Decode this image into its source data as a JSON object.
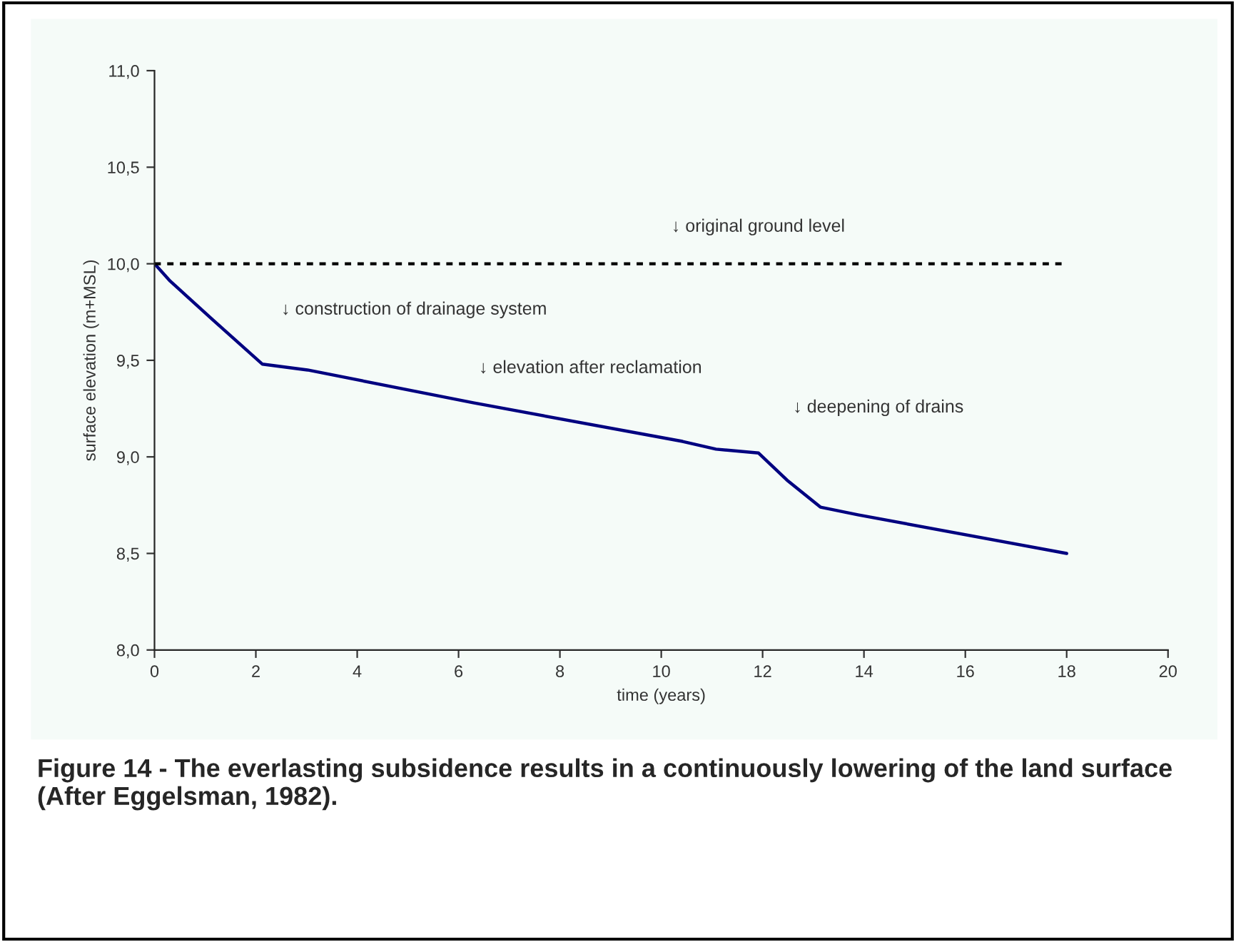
{
  "chart_data": {
    "type": "line",
    "xlabel": "time (years)",
    "ylabel": "surface elevation (m+MSL)",
    "xlim": [
      0,
      20
    ],
    "xticks": [
      0,
      2,
      4,
      6,
      8,
      10,
      12,
      14,
      16,
      18,
      20
    ],
    "ylim": [
      8.0,
      11.0
    ],
    "yticks": [
      {
        "value": 8.0,
        "label": "8,0"
      },
      {
        "value": 8.5,
        "label": "8,5"
      },
      {
        "value": 9.0,
        "label": "9,0"
      },
      {
        "value": 9.5,
        "label": "9,5"
      },
      {
        "value": 10.0,
        "label": "10,0"
      },
      {
        "value": 10.5,
        "label": "10,5"
      },
      {
        "value": 11.0,
        "label": "11,0"
      }
    ],
    "grid": false,
    "legend": false,
    "series": [
      {
        "color": "#000080",
        "line_style": "solid",
        "x": [
          0,
          0.31,
          1.15,
          2.13,
          3.02,
          6.29,
          10.42,
          11.08,
          11.92,
          12.48,
          13.14,
          13.88,
          18.0
        ],
        "values": [
          10.0,
          9.91,
          9.71,
          9.48,
          9.45,
          9.28,
          9.08,
          9.04,
          9.02,
          8.88,
          8.74,
          8.7,
          8.5
        ]
      },
      {
        "color": "#000000",
        "line_style": "dashed",
        "x": [
          0,
          18
        ],
        "values": [
          10.0,
          10.0
        ]
      }
    ],
    "annotations": [
      "↓ original ground level",
      "↓ construction of drainage system",
      "↓ elevation after reclamation",
      "↓ deepening of drains",
      "Figure 14 - The everlasting subsidence results in a continuously lowering of the land surface (After Eggelsman, 1982)."
    ]
  }
}
